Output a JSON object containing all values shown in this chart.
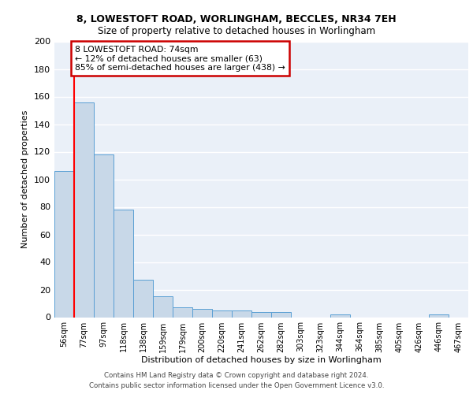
{
  "title1": "8, LOWESTOFT ROAD, WORLINGHAM, BECCLES, NR34 7EH",
  "title2": "Size of property relative to detached houses in Worlingham",
  "xlabel": "Distribution of detached houses by size in Worlingham",
  "ylabel": "Number of detached properties",
  "categories": [
    "56sqm",
    "77sqm",
    "97sqm",
    "118sqm",
    "138sqm",
    "159sqm",
    "179sqm",
    "200sqm",
    "220sqm",
    "241sqm",
    "262sqm",
    "282sqm",
    "303sqm",
    "323sqm",
    "344sqm",
    "364sqm",
    "385sqm",
    "405sqm",
    "426sqm",
    "446sqm",
    "467sqm"
  ],
  "values": [
    106,
    156,
    118,
    78,
    27,
    15,
    7,
    6,
    5,
    5,
    4,
    4,
    0,
    0,
    2,
    0,
    0,
    0,
    0,
    2,
    0
  ],
  "bar_color": "#c8d8e8",
  "bar_edge_color": "#5a9fd4",
  "background_color": "#eaf0f8",
  "grid_color": "#ffffff",
  "property_label": "8 LOWESTOFT ROAD: 74sqm",
  "annotation_line1": "← 12% of detached houses are smaller (63)",
  "annotation_line2": "85% of semi-detached houses are larger (438) →",
  "annotation_box_color": "#ffffff",
  "annotation_box_edge": "#cc0000",
  "footer1": "Contains HM Land Registry data © Crown copyright and database right 2024.",
  "footer2": "Contains public sector information licensed under the Open Government Licence v3.0.",
  "ylim": [
    0,
    200
  ],
  "yticks": [
    0,
    20,
    40,
    60,
    80,
    100,
    120,
    140,
    160,
    180,
    200
  ],
  "vline_x": 0.5
}
